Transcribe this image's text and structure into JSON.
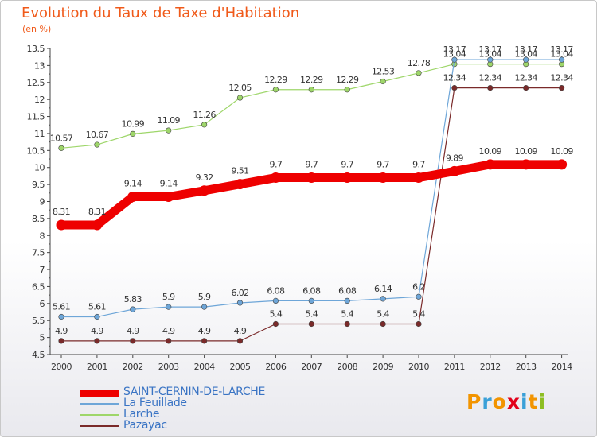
{
  "header": {
    "title": "Evolution du Taux de Taxe d'Habitation",
    "subtitle": "(en %)"
  },
  "logo": {
    "text": "Proxiti",
    "colors": [
      "#f29400",
      "#3aa0d8",
      "#f29400",
      "#e2001a",
      "#3aa0d8",
      "#f29400",
      "#8dbe22"
    ]
  },
  "chart_data": {
    "type": "line",
    "title": "Evolution du Taux de Taxe d'Habitation",
    "subtitle": "(en %)",
    "xlabel": "",
    "ylabel": "",
    "x": [
      "2000",
      "2001",
      "2002",
      "2003",
      "2004",
      "2005",
      "2006",
      "2007",
      "2008",
      "2009",
      "2010",
      "2011",
      "2012",
      "2013",
      "2014"
    ],
    "ylim": [
      4.5,
      13.5
    ],
    "ytick_step": 0.5,
    "grid": false,
    "legend_position": "bottom-left",
    "series": [
      {
        "name": "SAINT-CERNIN-DE-LARCHE",
        "color": "#ee0000",
        "values": [
          8.31,
          8.31,
          9.14,
          9.14,
          9.32,
          9.51,
          9.7,
          9.7,
          9.7,
          9.7,
          9.7,
          9.89,
          10.09,
          10.09,
          10.09
        ],
        "labels": [
          "8.31",
          "8.31",
          "9.14",
          "9.14",
          "9.32",
          "9.51",
          "9.7",
          "9.7",
          "9.7",
          "9.7",
          "9.7",
          "9.89",
          "10.09",
          "10.09",
          "10.09"
        ]
      },
      {
        "name": "La Feuillade",
        "color": "#6ea6d8",
        "values": [
          5.61,
          5.61,
          5.83,
          5.9,
          5.9,
          6.02,
          6.08,
          6.08,
          6.08,
          6.14,
          6.2,
          13.17,
          13.17,
          13.17,
          13.17
        ],
        "labels": [
          "5.61",
          "5.61",
          "5.83",
          "5.9",
          "5.9",
          "6.02",
          "6.08",
          "6.08",
          "6.08",
          "6.14",
          "6.2",
          "13.17",
          "13.17",
          "13.17",
          "13.17"
        ]
      },
      {
        "name": "Larche",
        "color": "#9ed66a",
        "values": [
          10.57,
          10.67,
          10.99,
          11.09,
          11.26,
          12.05,
          12.29,
          12.29,
          12.29,
          12.53,
          12.78,
          13.04,
          13.04,
          13.04,
          13.04
        ],
        "labels": [
          "10.57",
          "10.67",
          "10.99",
          "11.09",
          "11.26",
          "12.05",
          "12.29",
          "12.29",
          "12.29",
          "12.53",
          "12.78",
          "13.04",
          "13.04",
          "13.04",
          "13.04"
        ]
      },
      {
        "name": "Pazayac",
        "color": "#7a2a2a",
        "values": [
          4.9,
          4.9,
          4.9,
          4.9,
          4.9,
          4.9,
          5.4,
          5.4,
          5.4,
          5.4,
          5.4,
          12.34,
          12.34,
          12.34,
          12.34
        ],
        "labels": [
          "4.9",
          "4.9",
          "4.9",
          "4.9",
          "4.9",
          "4.9",
          "5.4",
          "5.4",
          "5.4",
          "5.4",
          "5.4",
          "12.34",
          "12.34",
          "12.34",
          "12.34"
        ]
      }
    ]
  }
}
